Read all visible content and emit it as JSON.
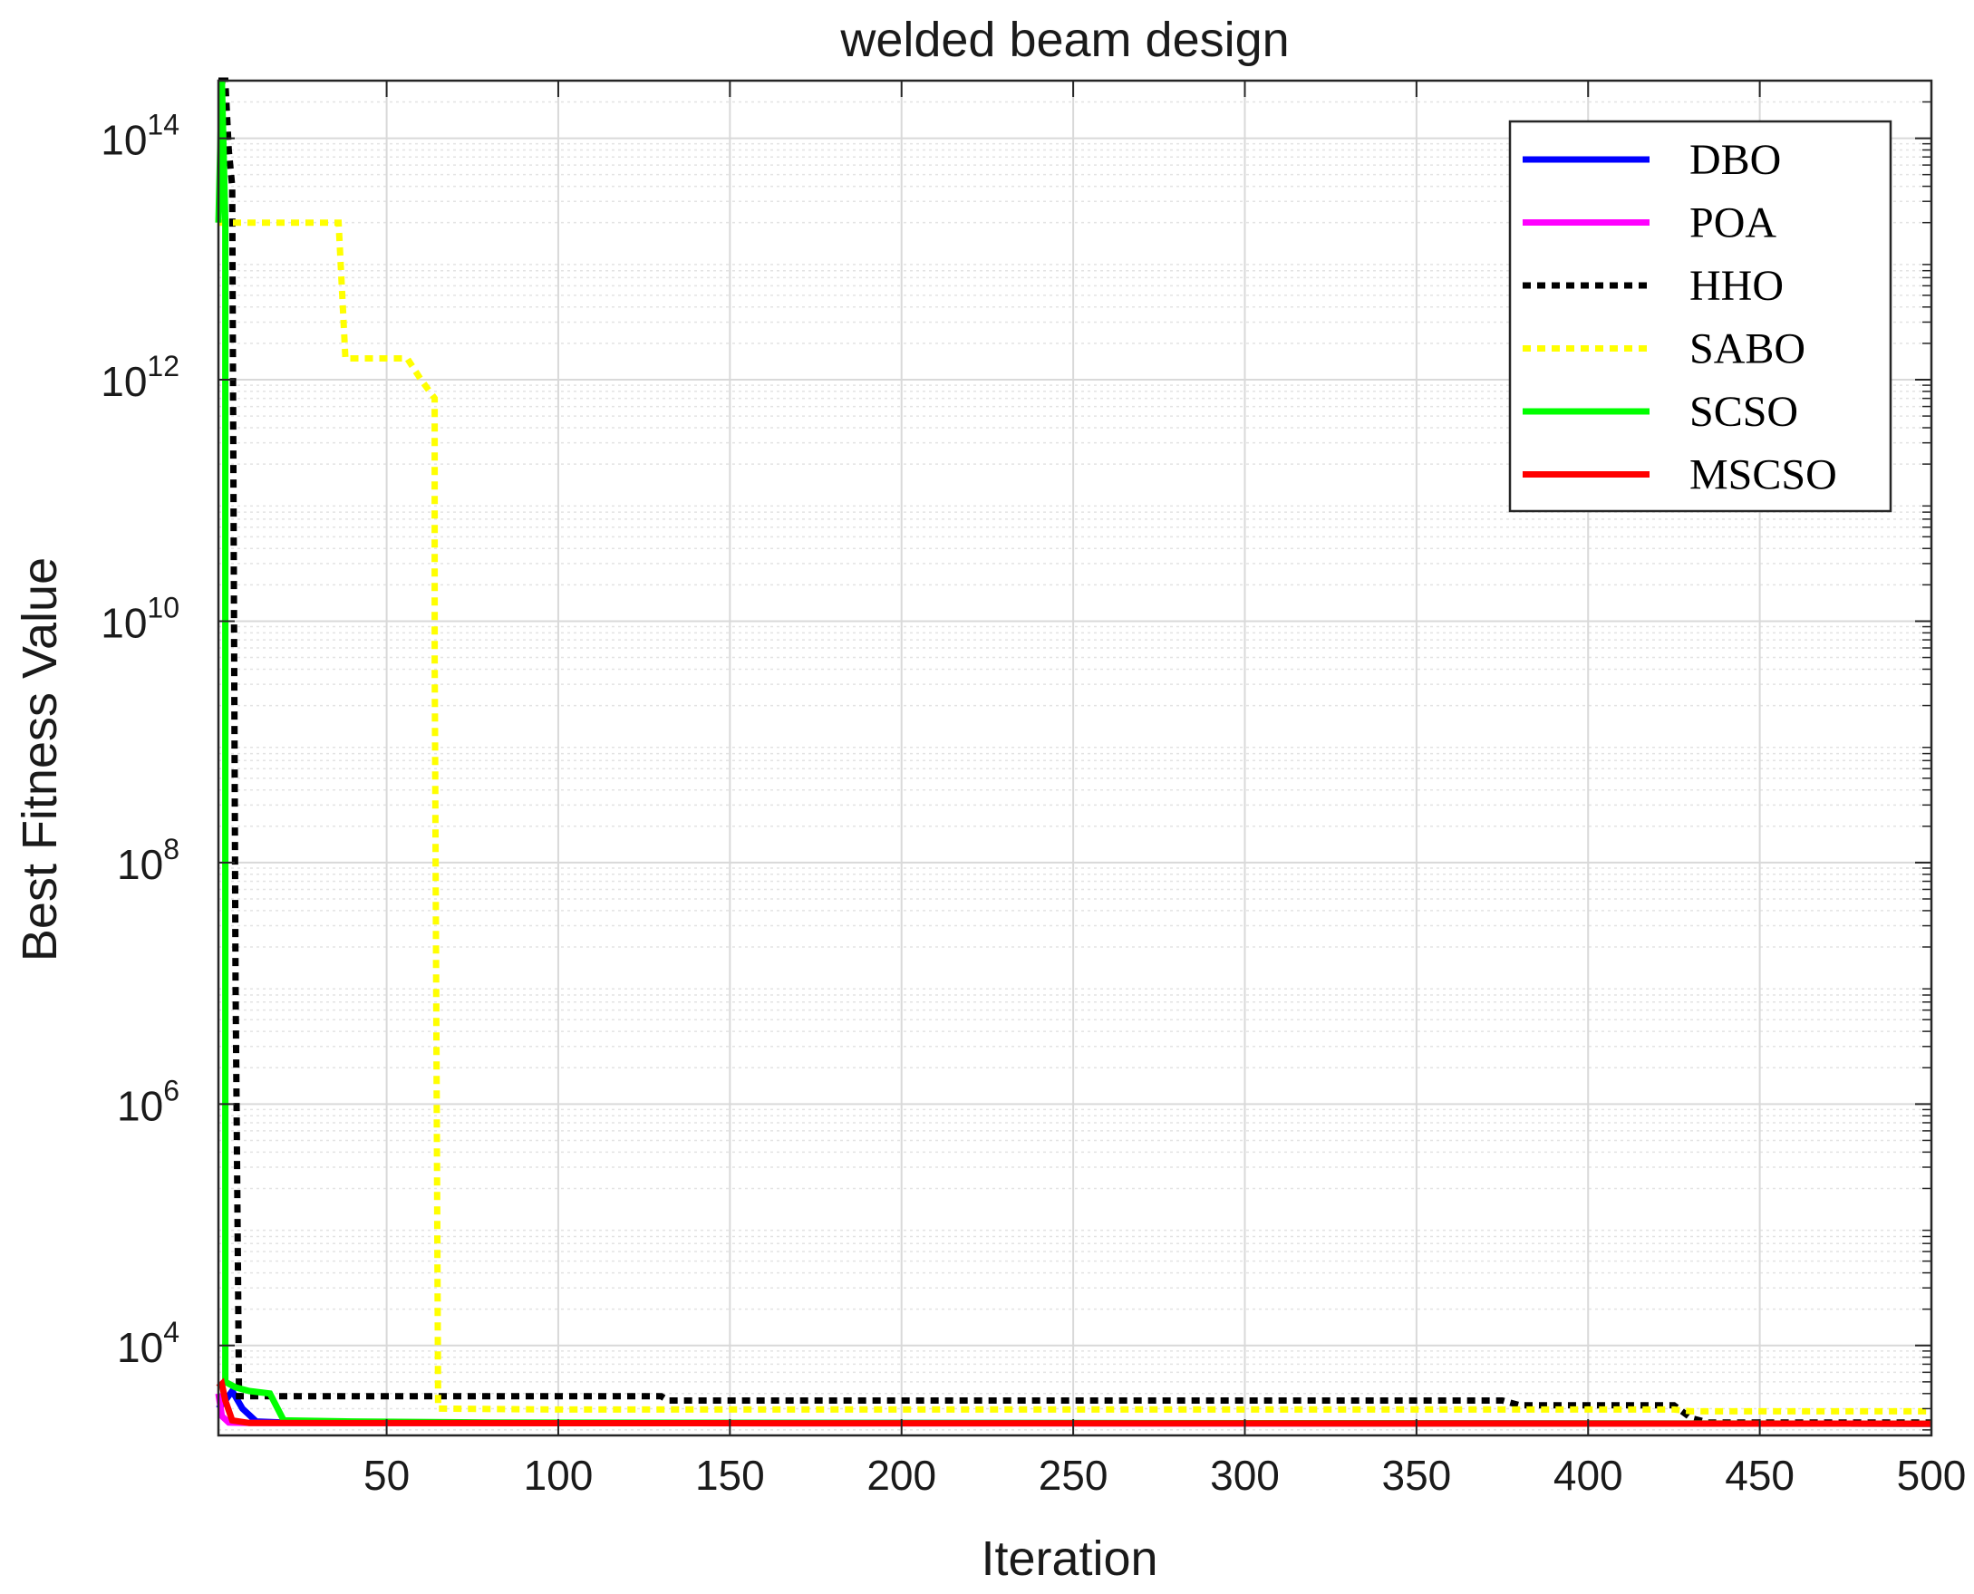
{
  "chart_data": {
    "type": "line",
    "title": "welded beam design",
    "xlabel": "Iteration",
    "ylabel": "Best Fitness Value",
    "xlim": [
      1,
      500
    ],
    "ylim": [
      1800,
      300000000000000
    ],
    "yscale": "log",
    "grid": true,
    "legend_position": "top-right",
    "x_ticks": [
      50,
      100,
      150,
      200,
      250,
      300,
      350,
      400,
      450,
      500
    ],
    "y_ticks": [
      {
        "value": 10000,
        "base": "10",
        "exp": "4"
      },
      {
        "value": 1000000,
        "base": "10",
        "exp": "6"
      },
      {
        "value": 100000000,
        "base": "10",
        "exp": "8"
      },
      {
        "value": 10000000000,
        "base": "10",
        "exp": "10"
      },
      {
        "value": 1000000000000,
        "base": "10",
        "exp": "12"
      },
      {
        "value": 100000000000000,
        "base": "10",
        "exp": "14"
      }
    ],
    "series": [
      {
        "name": "DBO",
        "color": "#0000ff",
        "style": "solid",
        "points": [
          [
            1,
            3000
          ],
          [
            3,
            3500
          ],
          [
            5,
            4200
          ],
          [
            8,
            3000
          ],
          [
            12,
            2350
          ],
          [
            20,
            2300
          ],
          [
            500,
            2250
          ]
        ]
      },
      {
        "name": "POA",
        "color": "#ff00ff",
        "style": "solid",
        "points": [
          [
            1,
            4000
          ],
          [
            2,
            2600
          ],
          [
            4,
            2300
          ],
          [
            10,
            2280
          ],
          [
            500,
            2250
          ]
        ]
      },
      {
        "name": "HHO",
        "color": "#000000",
        "style": "dotted",
        "points": [
          [
            1,
            300000000000000
          ],
          [
            3,
            300000000000000
          ],
          [
            4,
            80000000000000
          ],
          [
            5,
            40000000000000
          ],
          [
            6,
            10000000
          ],
          [
            7,
            3800
          ],
          [
            130,
            3800
          ],
          [
            132,
            3500
          ],
          [
            375,
            3500
          ],
          [
            380,
            3200
          ],
          [
            425,
            3200
          ],
          [
            430,
            2500
          ],
          [
            435,
            2300
          ],
          [
            500,
            2300
          ]
        ]
      },
      {
        "name": "SABO",
        "color": "#ffff00",
        "style": "dotted",
        "points": [
          [
            1,
            20000000000000
          ],
          [
            2,
            20000000000000
          ],
          [
            36,
            20000000000000
          ],
          [
            38,
            1500000000000
          ],
          [
            56,
            1500000000000
          ],
          [
            60,
            1000000000000
          ],
          [
            64,
            700000000000
          ],
          [
            64,
            5000000000
          ],
          [
            65,
            3000
          ],
          [
            100,
            2950
          ],
          [
            425,
            2950
          ],
          [
            430,
            2850
          ],
          [
            500,
            2850
          ]
        ]
      },
      {
        "name": "SCSO",
        "color": "#00ff00",
        "style": "solid",
        "points": [
          [
            1,
            20000000000000
          ],
          [
            2,
            300000000000000
          ],
          [
            3,
            20000000000000
          ],
          [
            3,
            5000
          ],
          [
            6,
            4500
          ],
          [
            10,
            4200
          ],
          [
            16,
            4000
          ],
          [
            20,
            2400
          ],
          [
            40,
            2350
          ],
          [
            80,
            2300
          ],
          [
            500,
            2250
          ]
        ]
      },
      {
        "name": "MSCSO",
        "color": "#ff0000",
        "style": "solid",
        "points": [
          [
            1,
            4500
          ],
          [
            2,
            4800
          ],
          [
            3,
            3500
          ],
          [
            5,
            2400
          ],
          [
            10,
            2280
          ],
          [
            500,
            2250
          ]
        ]
      }
    ]
  }
}
